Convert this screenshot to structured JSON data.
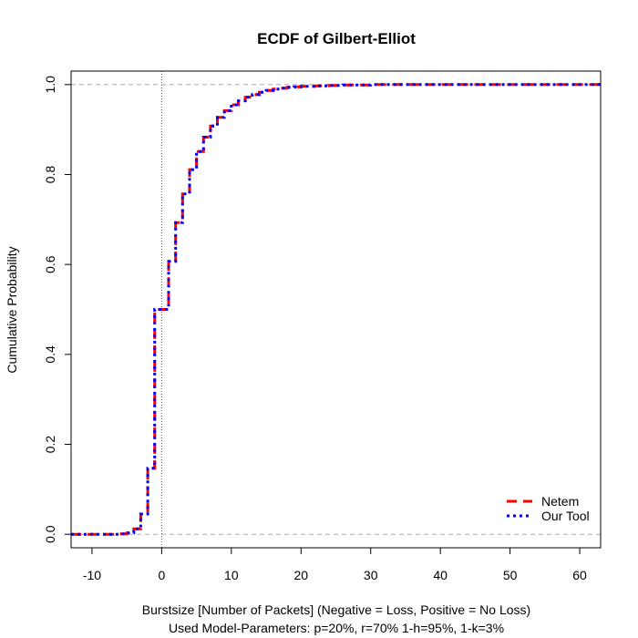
{
  "chart_data": {
    "type": "line",
    "subtype": "ecdf-step",
    "title": "ECDF of Gilbert-Elliot",
    "xlabel": "Burstsize [Number of Packets] (Negative = Loss, Positive = No Loss)",
    "xlabel_line2": "Used Model-Parameters: p=20%, r=70% 1-h=95%, 1-k=3%",
    "ylabel": "Cumulative Probability",
    "xlim": [
      -13,
      63
    ],
    "ylim": [
      -0.03,
      1.03
    ],
    "x_ticks": [
      -10,
      0,
      10,
      20,
      30,
      40,
      50,
      60
    ],
    "y_ticks": [
      0.0,
      0.2,
      0.4,
      0.6,
      0.8,
      1.0
    ],
    "x_tick_labels": [
      "-10",
      "0",
      "10",
      "20",
      "30",
      "40",
      "50",
      "60"
    ],
    "y_tick_labels": [
      "0.0",
      "0.2",
      "0.4",
      "0.6",
      "0.8",
      "1.0"
    ],
    "reference_lines": {
      "horizontal": [
        0,
        1
      ],
      "vertical": [
        0
      ]
    },
    "legend": {
      "position": "bottom-right"
    },
    "series": [
      {
        "name": "Netem",
        "color": "#ff0000",
        "dash": "long-dash",
        "x": [
          -13,
          -7,
          -6,
          -5,
          -4,
          -3,
          -2,
          -1,
          1,
          2,
          3,
          4,
          5,
          6,
          7,
          8,
          9,
          10,
          11,
          12,
          13,
          14,
          15,
          16,
          17,
          18,
          19,
          20,
          22,
          24,
          26,
          28,
          30,
          35,
          63
        ],
        "y": [
          0.0,
          0.0,
          0.001,
          0.003,
          0.012,
          0.045,
          0.147,
          0.5,
          0.607,
          0.693,
          0.757,
          0.811,
          0.851,
          0.883,
          0.908,
          0.927,
          0.942,
          0.955,
          0.964,
          0.972,
          0.978,
          0.983,
          0.987,
          0.99,
          0.992,
          0.994,
          0.995,
          0.996,
          0.997,
          0.998,
          0.999,
          0.999,
          1.0,
          1.0,
          1.0
        ]
      },
      {
        "name": "Our Tool",
        "color": "#0000ff",
        "dash": "dotted",
        "x": [
          -13,
          -7,
          -6,
          -5,
          -4,
          -3,
          -2,
          -1,
          1,
          2,
          3,
          4,
          5,
          6,
          7,
          8,
          9,
          10,
          11,
          12,
          13,
          14,
          15,
          16,
          17,
          18,
          19,
          20,
          22,
          24,
          26,
          28,
          30,
          35,
          63
        ],
        "y": [
          0.0,
          0.0,
          0.001,
          0.003,
          0.012,
          0.045,
          0.147,
          0.5,
          0.607,
          0.693,
          0.757,
          0.811,
          0.851,
          0.883,
          0.908,
          0.927,
          0.942,
          0.955,
          0.964,
          0.972,
          0.978,
          0.983,
          0.987,
          0.99,
          0.992,
          0.994,
          0.995,
          0.996,
          0.997,
          0.998,
          0.999,
          0.999,
          1.0,
          1.0,
          1.0
        ]
      }
    ]
  }
}
